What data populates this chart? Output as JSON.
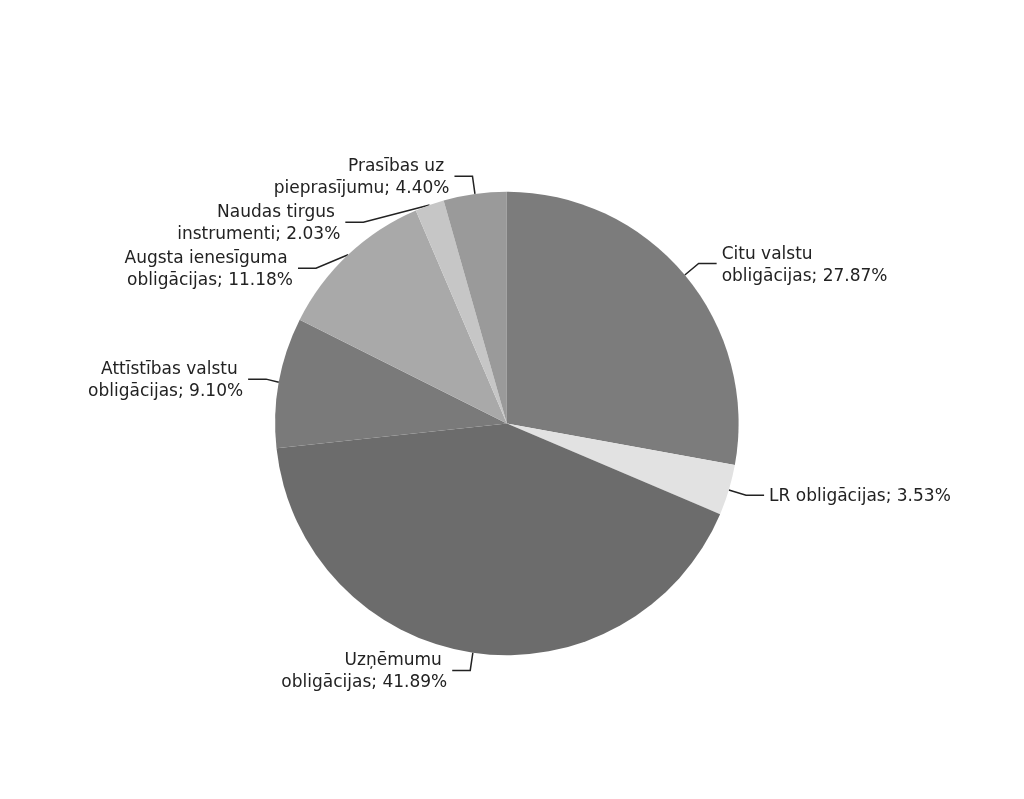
{
  "chart_data": {
    "type": "pie",
    "categories": [
      "Citu valstu obligācijas",
      "LR obligācijas",
      "Uzņēmumu obligācijas",
      "Attīstības valstu obligācijas",
      "Augsta ienesīguma obligācijas",
      "Naudas tirgus instrumenti",
      "Prasības uz pieprasījumu"
    ],
    "values": [
      27.87,
      3.53,
      41.89,
      9.1,
      11.18,
      2.03,
      4.4
    ],
    "value_labels": [
      "27.87%",
      "3.53%",
      "41.89%",
      "9.10%",
      "11.18%",
      "2.03%",
      "4.40%"
    ],
    "colors": [
      "#7c7c7c",
      "#e2e2e2",
      "#6c6c6c",
      "#7a7a7a",
      "#a9a9a9",
      "#c6c6c6",
      "#9a9a9a"
    ],
    "legend": false
  }
}
